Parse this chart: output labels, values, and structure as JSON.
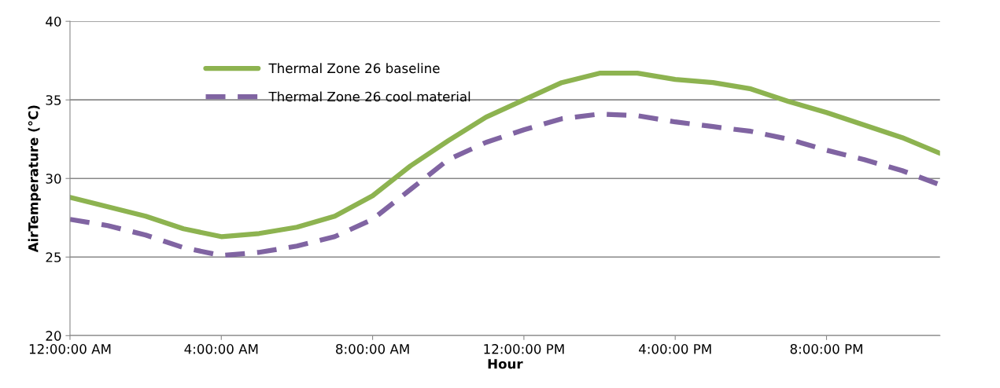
{
  "chart_data": {
    "type": "line",
    "xlabel": "Hour",
    "ylabel": "AirTemperature (°C)",
    "x": [
      0,
      1,
      2,
      3,
      4,
      5,
      6,
      7,
      8,
      9,
      10,
      11,
      12,
      13,
      14,
      15,
      16,
      17,
      18,
      19,
      20,
      21,
      22,
      23
    ],
    "series": [
      {
        "name": "Thermal Zone 26 baseline",
        "color": "#8db350",
        "line_style": "solid",
        "values": [
          28.8,
          28.2,
          27.6,
          26.8,
          26.3,
          26.5,
          26.9,
          27.6,
          28.9,
          30.8,
          32.4,
          33.9,
          35.0,
          36.1,
          36.7,
          36.7,
          36.3,
          36.1,
          35.7,
          34.9,
          34.2,
          33.4,
          32.6,
          31.6
        ]
      },
      {
        "name": "Thermal Zone 26 cool material",
        "color": "#8064a2",
        "line_style": "dashed",
        "values": [
          27.4,
          27.0,
          26.4,
          25.6,
          25.1,
          25.3,
          25.7,
          26.3,
          27.4,
          29.3,
          31.2,
          32.3,
          33.1,
          33.8,
          34.1,
          34.0,
          33.6,
          33.3,
          33.0,
          32.5,
          31.8,
          31.2,
          30.5,
          29.6
        ]
      }
    ],
    "xlim": [
      0,
      23
    ],
    "xticks": [
      {
        "value": 0,
        "label": "12:00:00 AM"
      },
      {
        "value": 4,
        "label": "4:00:00 AM"
      },
      {
        "value": 8,
        "label": "8:00:00 AM"
      },
      {
        "value": 12,
        "label": "12:00:00 PM"
      },
      {
        "value": 16,
        "label": "4:00:00 PM"
      },
      {
        "value": 20,
        "label": "8:00:00 PM"
      }
    ],
    "ylim": [
      20,
      40
    ],
    "yticks": [
      20,
      25,
      30,
      35,
      40
    ],
    "grid": "y",
    "legend": "top left",
    "marker": "none"
  }
}
